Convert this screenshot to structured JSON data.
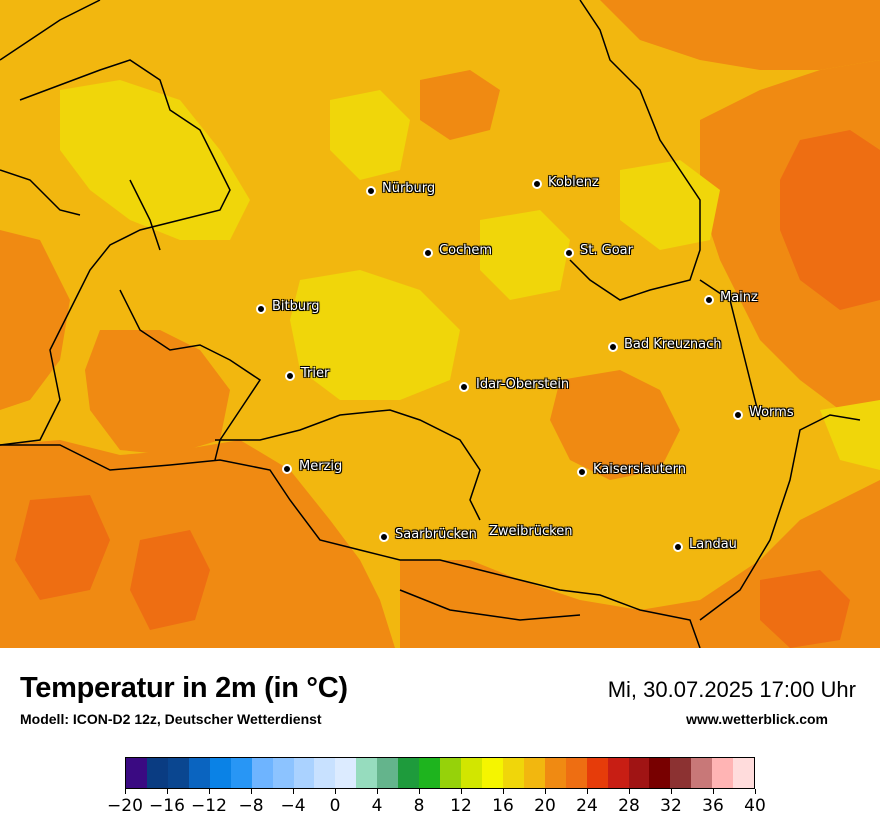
{
  "map": {
    "cities": [
      {
        "name": "Nürburg"
      },
      {
        "name": "Koblenz"
      },
      {
        "name": "Cochem"
      },
      {
        "name": "St. Goar"
      },
      {
        "name": "Mainz"
      },
      {
        "name": "Bitburg"
      },
      {
        "name": "Bad Kreuznach"
      },
      {
        "name": "Trier"
      },
      {
        "name": "Idar-Oberstein"
      },
      {
        "name": "Worms"
      },
      {
        "name": "Merzig"
      },
      {
        "name": "Kaiserslautern"
      },
      {
        "name": "Saarbrücken"
      },
      {
        "name": "Zweibrücken"
      },
      {
        "name": "Landau"
      }
    ],
    "field_colors": {
      "yellow": "#f0d60a",
      "amber": "#f2b70f",
      "orange": "#f08a12",
      "dark_orange": "#ee6e12"
    }
  },
  "footer": {
    "title": "Temperatur in 2m (in °C)",
    "model": "Modell: ICON-D2 12z, Deutscher Wetterdienst",
    "datetime": "Mi, 30.07.2025 17:00 Uhr",
    "website": "www.wetterblick.com"
  },
  "legend": {
    "colors": [
      "#3a0a82",
      "#0a3c82",
      "#0a4690",
      "#0a64c0",
      "#0a82e6",
      "#2896f5",
      "#6eb4ff",
      "#8cc3ff",
      "#aad2ff",
      "#c8e1ff",
      "#dcebff",
      "#96dcbe",
      "#64b48c",
      "#1e9b3c",
      "#1eb41e",
      "#96d20a",
      "#d2e600",
      "#f5f500",
      "#f0d60a",
      "#f2b70f",
      "#f08a12",
      "#ee6e12",
      "#e63c0a",
      "#c81e14",
      "#a01414",
      "#780000",
      "#8c3232",
      "#c87878",
      "#ffb4b4",
      "#ffdcdc"
    ],
    "tick_labels": [
      "−20",
      "−16",
      "−12",
      "−8",
      "−4",
      "0",
      "4",
      "8",
      "12",
      "16",
      "20",
      "24",
      "28",
      "32",
      "36",
      "40"
    ],
    "min": -20,
    "max": 40,
    "step": 2
  }
}
